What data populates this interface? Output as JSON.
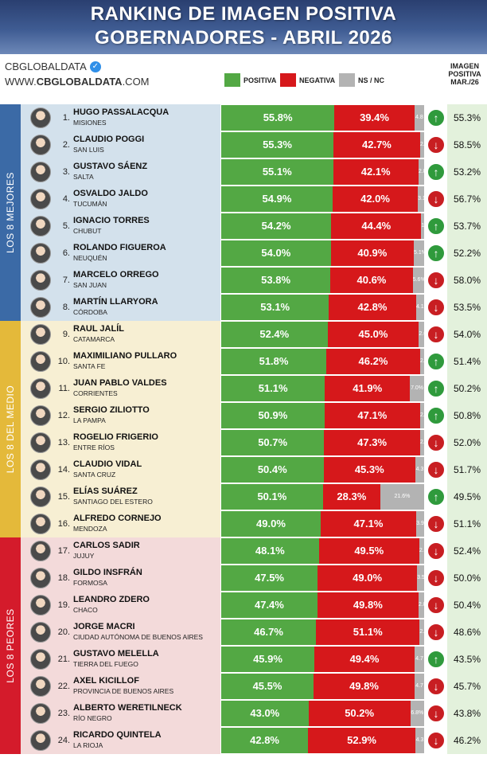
{
  "header": {
    "title_line1": "RANKING DE IMAGEN POSITIVA",
    "title_line2": "GOBERNADORES - ABRIL 2026"
  },
  "brand": {
    "handle": "CBGLOBALDATA",
    "url_prefix": "WWW.",
    "url_main": "CBGLOBALDATA",
    "url_suffix": ".COM"
  },
  "legend": {
    "positive": "POSITIVA",
    "negative": "NEGATIVA",
    "ns": "NS / NC"
  },
  "previous_header": {
    "line1": "IMAGEN",
    "line2": "POSITIVA",
    "line3": "MAR./26"
  },
  "groups": [
    {
      "label": "LOS 8 MEJORES",
      "color": "#3b6aa6",
      "bg": "#d3e1ec"
    },
    {
      "label": "LOS 8 DEL MEDIO",
      "color": "#e4b93a",
      "bg": "#f7efd3"
    },
    {
      "label": "LOS 8 PEORES",
      "color": "#d41b2b",
      "bg": "#f3dada"
    }
  ],
  "colors": {
    "positive": "#53a844",
    "negative": "#d6181b",
    "ns": "#b3b3b3",
    "arrow_up": "#2f9a3c",
    "arrow_down": "#c81e22"
  },
  "chart_data": {
    "type": "bar",
    "stacked": true,
    "orientation": "horizontal",
    "title": "RANKING DE IMAGEN POSITIVA GOBERNADORES - ABRIL 2026",
    "series": [
      {
        "name": "POSITIVA"
      },
      {
        "name": "NEGATIVA"
      },
      {
        "name": "NS / NC"
      }
    ],
    "rows": [
      {
        "rank": "1.",
        "name": "HUGO PASSALACQUA",
        "province": "MISIONES",
        "positive": 55.8,
        "positive_label": "55.8%",
        "negative": 39.4,
        "negative_label": "39.4%",
        "ns": 4.8,
        "ns_label": "4.8",
        "trend": "up",
        "previous": 55.3,
        "previous_label": "55.3%"
      },
      {
        "rank": "2.",
        "name": "CLAUDIO POGGI",
        "province": "SAN LUIS",
        "positive": 55.3,
        "positive_label": "55.3%",
        "negative": 42.7,
        "negative_label": "42.7%",
        "ns": 2.0,
        "ns_label": "2.0",
        "trend": "down",
        "previous": 58.5,
        "previous_label": "58.5%"
      },
      {
        "rank": "3.",
        "name": "GUSTAVO SÁENZ",
        "province": "SALTA",
        "positive": 55.1,
        "positive_label": "55.1%",
        "negative": 42.1,
        "negative_label": "42.1%",
        "ns": 2.8,
        "ns_label": "2.8",
        "trend": "up",
        "previous": 53.2,
        "previous_label": "53.2%"
      },
      {
        "rank": "4.",
        "name": "OSVALDO JALDO",
        "province": "TUCUMÁN",
        "positive": 54.9,
        "positive_label": "54.9%",
        "negative": 42.0,
        "negative_label": "42.0%",
        "ns": 3.1,
        "ns_label": "3.1",
        "trend": "down",
        "previous": 56.7,
        "previous_label": "56.7%"
      },
      {
        "rank": "5.",
        "name": "IGNACIO TORRES",
        "province": "CHUBUT",
        "positive": 54.2,
        "positive_label": "54.2%",
        "negative": 44.4,
        "negative_label": "44.4%",
        "ns": 1.4,
        "ns_label": "1.4",
        "trend": "up",
        "previous": 53.7,
        "previous_label": "53.7%"
      },
      {
        "rank": "6.",
        "name": "ROLANDO FIGUEROA",
        "province": "NEUQUÉN",
        "positive": 54.0,
        "positive_label": "54.0%",
        "negative": 40.9,
        "negative_label": "40.9%",
        "ns": 5.1,
        "ns_label": "5.1%",
        "trend": "up",
        "previous": 52.2,
        "previous_label": "52.2%"
      },
      {
        "rank": "7.",
        "name": "MARCELO ORREGO",
        "province": "SAN JUAN",
        "positive": 53.8,
        "positive_label": "53.8%",
        "negative": 40.6,
        "negative_label": "40.6%",
        "ns": 5.6,
        "ns_label": "5.6%",
        "trend": "down",
        "previous": 58.0,
        "previous_label": "58.0%"
      },
      {
        "rank": "8.",
        "name": "MARTÍN LLARYORA",
        "province": "CÓRDOBA",
        "positive": 53.1,
        "positive_label": "53.1%",
        "negative": 42.8,
        "negative_label": "42.8%",
        "ns": 4.1,
        "ns_label": "4.1",
        "trend": "down",
        "previous": 53.5,
        "previous_label": "53.5%"
      },
      {
        "rank": "9.",
        "name": "RAUL JALÍL",
        "province": "CATAMARCA",
        "positive": 52.4,
        "positive_label": "52.4%",
        "negative": 45.0,
        "negative_label": "45.0%",
        "ns": 2.6,
        "ns_label": "2.6",
        "trend": "down",
        "previous": 54.0,
        "previous_label": "54.0%"
      },
      {
        "rank": "10.",
        "name": "MAXIMILIANO PULLARO",
        "province": "SANTA FE",
        "positive": 51.8,
        "positive_label": "51.8%",
        "negative": 46.2,
        "negative_label": "46.2%",
        "ns": 2.0,
        "ns_label": "2.0",
        "trend": "up",
        "previous": 51.4,
        "previous_label": "51.4%"
      },
      {
        "rank": "11.",
        "name": "JUAN PABLO VALDES",
        "province": "CORRIENTES",
        "positive": 51.1,
        "positive_label": "51.1%",
        "negative": 41.9,
        "negative_label": "41.9%",
        "ns": 7.0,
        "ns_label": "7.0%",
        "trend": "up",
        "previous": 50.2,
        "previous_label": "50.2%"
      },
      {
        "rank": "12.",
        "name": "SERGIO ZILIOTTO",
        "province": "LA PAMPA",
        "positive": 50.9,
        "positive_label": "50.9%",
        "negative": 47.1,
        "negative_label": "47.1%",
        "ns": 2.0,
        "ns_label": "2.0",
        "trend": "up",
        "previous": 50.8,
        "previous_label": "50.8%"
      },
      {
        "rank": "13.",
        "name": "ROGELIO FRIGERIO",
        "province": "ENTRE RÍOS",
        "positive": 50.7,
        "positive_label": "50.7%",
        "negative": 47.3,
        "negative_label": "47.3%",
        "ns": 2.0,
        "ns_label": "2.0",
        "trend": "down",
        "previous": 52.0,
        "previous_label": "52.0%"
      },
      {
        "rank": "14.",
        "name": "CLAUDIO VIDAL",
        "province": "SANTA CRUZ",
        "positive": 50.4,
        "positive_label": "50.4%",
        "negative": 45.3,
        "negative_label": "45.3%",
        "ns": 4.3,
        "ns_label": "4.3",
        "trend": "down",
        "previous": 51.7,
        "previous_label": "51.7%"
      },
      {
        "rank": "15.",
        "name": "ELÍAS SUÁREZ",
        "province": "SANTIAGO DEL ESTERO",
        "positive": 50.1,
        "positive_label": "50.1%",
        "negative": 28.3,
        "negative_label": "28.3%",
        "ns": 21.6,
        "ns_label": "21.6%",
        "trend": "up",
        "previous": 49.5,
        "previous_label": "49.5%"
      },
      {
        "rank": "16.",
        "name": "ALFREDO CORNEJO",
        "province": "MENDOZA",
        "positive": 49.0,
        "positive_label": "49.0%",
        "negative": 47.1,
        "negative_label": "47.1%",
        "ns": 3.9,
        "ns_label": "3.9",
        "trend": "down",
        "previous": 51.1,
        "previous_label": "51.1%"
      },
      {
        "rank": "17.",
        "name": "CARLOS SADIR",
        "province": "JUJUY",
        "positive": 48.1,
        "positive_label": "48.1%",
        "negative": 49.5,
        "negative_label": "49.5%",
        "ns": 2.4,
        "ns_label": "2.4",
        "trend": "down",
        "previous": 52.4,
        "previous_label": "52.4%"
      },
      {
        "rank": "18.",
        "name": "GILDO INSFRÁN",
        "province": "FORMOSA",
        "positive": 47.5,
        "positive_label": "47.5%",
        "negative": 49.0,
        "negative_label": "49.0%",
        "ns": 3.5,
        "ns_label": "3.5",
        "trend": "down",
        "previous": 50.0,
        "previous_label": "50.0%"
      },
      {
        "rank": "19.",
        "name": "LEANDRO ZDERO",
        "province": "CHACO",
        "positive": 47.4,
        "positive_label": "47.4%",
        "negative": 49.8,
        "negative_label": "49.8%",
        "ns": 2.8,
        "ns_label": "2.8",
        "trend": "down",
        "previous": 50.4,
        "previous_label": "50.4%"
      },
      {
        "rank": "20.",
        "name": "JORGE MACRI",
        "province": "CIUDAD AUTÓNOMA DE BUENOS AIRES",
        "positive": 46.7,
        "positive_label": "46.7%",
        "negative": 51.1,
        "negative_label": "51.1%",
        "ns": 2.2,
        "ns_label": "2.2",
        "trend": "down",
        "previous": 48.6,
        "previous_label": "48.6%"
      },
      {
        "rank": "21.",
        "name": "GUSTAVO MELELLA",
        "province": "TIERRA DEL FUEGO",
        "positive": 45.9,
        "positive_label": "45.9%",
        "negative": 49.4,
        "negative_label": "49.4%",
        "ns": 4.7,
        "ns_label": "4.7",
        "trend": "up",
        "previous": 43.5,
        "previous_label": "43.5%"
      },
      {
        "rank": "22.",
        "name": "AXEL KICILLOF",
        "province": "PROVINCIA DE BUENOS AIRES",
        "positive": 45.5,
        "positive_label": "45.5%",
        "negative": 49.8,
        "negative_label": "49.8%",
        "ns": 4.7,
        "ns_label": "4.7",
        "trend": "down",
        "previous": 45.7,
        "previous_label": "45.7%"
      },
      {
        "rank": "23.",
        "name": "ALBERTO WERETILNECK",
        "province": "RÍO NEGRO",
        "positive": 43.0,
        "positive_label": "43.0%",
        "negative": 50.2,
        "negative_label": "50.2%",
        "ns": 6.8,
        "ns_label": "6.8%",
        "trend": "down",
        "previous": 43.8,
        "previous_label": "43.8%"
      },
      {
        "rank": "24.",
        "name": "RICARDO QUINTELA",
        "province": "LA RIOJA",
        "positive": 42.8,
        "positive_label": "42.8%",
        "negative": 52.9,
        "negative_label": "52.9%",
        "ns": 4.3,
        "ns_label": "4.3",
        "trend": "down",
        "previous": 46.2,
        "previous_label": "46.2%"
      }
    ]
  }
}
